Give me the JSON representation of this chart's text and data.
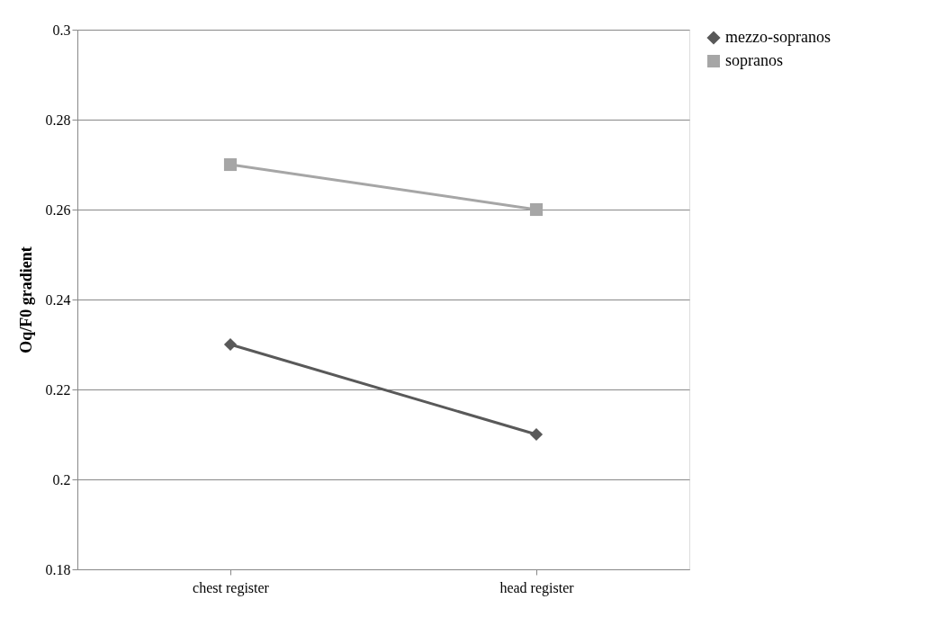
{
  "chart_data": {
    "type": "line",
    "ylabel": "Oq/F0 gradient",
    "categories": [
      "chest register",
      "head register"
    ],
    "series": [
      {
        "name": "mezzo-sopranos",
        "color": "#595959",
        "marker": "diamond",
        "values": [
          0.23,
          0.21
        ]
      },
      {
        "name": "sopranos",
        "color": "#a6a6a6",
        "marker": "square",
        "values": [
          0.27,
          0.26
        ]
      }
    ],
    "ylim": [
      0.18,
      0.3
    ],
    "yticks": [
      0.18,
      0.2,
      0.22,
      0.24,
      0.26,
      0.28,
      0.3
    ],
    "grid": "y",
    "legend": "right",
    "line_style": "solid"
  }
}
